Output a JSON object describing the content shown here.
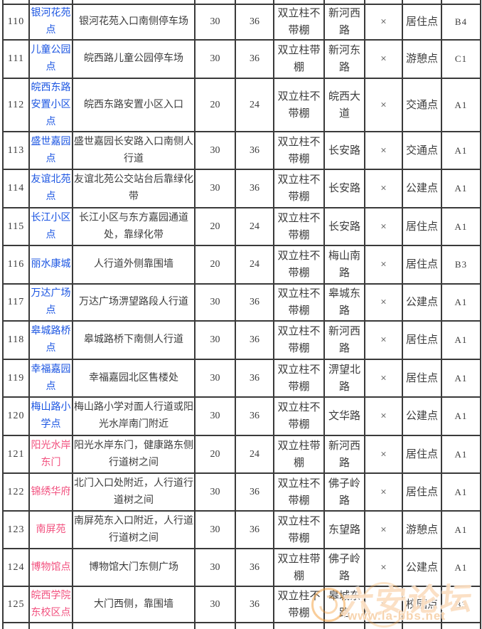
{
  "colors": {
    "link_blue": "#1b55e2",
    "link_pink": "#f2517f",
    "border": "#3a3a3a",
    "text": "#3c3c3c",
    "watermark_orange": "#f49c36"
  },
  "table": {
    "rows": [
      {
        "id": "110",
        "name": "银河花苑\n点",
        "link": "blue",
        "desc": "银河花苑入口南侧停车场",
        "qty1": "30",
        "qty2": "36",
        "type": "双立柱不\n带棚",
        "road": "新河西\n路",
        "mark": "×",
        "category": "居住点",
        "code": "B4"
      },
      {
        "id": "111",
        "name": "儿童公园\n点",
        "link": "blue",
        "desc": "皖西路儿童公园停车场",
        "qty1": "30",
        "qty2": "36",
        "type": "双立柱带\n棚",
        "road": "新河东\n路",
        "mark": "×",
        "category": "游憩点",
        "code": "C1"
      },
      {
        "id": "112",
        "name": "皖西东路\n安置小区\n点",
        "link": "blue",
        "desc": "皖西东路安置小区入口",
        "qty1": "20",
        "qty2": "24",
        "type": "双立柱不\n带棚",
        "road": "皖西大\n道",
        "mark": "×",
        "category": "交通点",
        "code": "A1"
      },
      {
        "id": "113",
        "name": "盛世嘉园\n点",
        "link": "blue",
        "desc": "盛世嘉园长安路入口南侧人\n行道",
        "qty1": "30",
        "qty2": "36",
        "type": "双立柱不\n带棚",
        "road": "长安路",
        "mark": "×",
        "category": "交通点",
        "code": "A1"
      },
      {
        "id": "114",
        "name": "友谊北苑\n点",
        "link": "blue",
        "desc": "友谊北苑公交站台后靠绿化\n带",
        "qty1": "30",
        "qty2": "36",
        "type": "双立柱不\n带棚",
        "road": "长安路",
        "mark": "×",
        "category": "公建点",
        "code": "A1"
      },
      {
        "id": "115",
        "name": "长江小区\n点",
        "link": "blue",
        "desc": "长江小区与东方嘉园通道\n处，靠绿化带",
        "qty1": "20",
        "qty2": "24",
        "type": "双立柱不\n带棚",
        "road": "长安路",
        "mark": "×",
        "category": "居住点",
        "code": "A1"
      },
      {
        "id": "116",
        "name": "丽水康城",
        "link": "blue",
        "desc": "人行道外侧靠围墙",
        "qty1": "20",
        "qty2": "24",
        "type": "双立柱不\n带棚",
        "road": "梅山南\n路",
        "mark": "×",
        "category": "居住点",
        "code": "B3"
      },
      {
        "id": "117",
        "name": "万达广场\n点",
        "link": "blue",
        "desc": "万达广场淠望路段人行道",
        "qty1": "30",
        "qty2": "36",
        "type": "双立柱不\n带棚",
        "road": "皋城东\n路",
        "mark": "×",
        "category": "公建点",
        "code": "A1"
      },
      {
        "id": "118",
        "name": "皋城路桥\n点",
        "link": "blue",
        "desc": "皋城路桥下南侧人行道",
        "qty1": "30",
        "qty2": "36",
        "type": "双立柱不\n带棚",
        "road": "新河西\n路",
        "mark": "×",
        "category": "居住点",
        "code": "A1"
      },
      {
        "id": "119",
        "name": "幸福嘉园\n点",
        "link": "blue",
        "desc": "幸福嘉园北区售楼处",
        "qty1": "30",
        "qty2": "36",
        "type": "双立柱不\n带棚",
        "road": "淠望北\n路",
        "mark": "×",
        "category": "居住点",
        "code": "A1"
      },
      {
        "id": "120",
        "name": "梅山路小\n学点",
        "link": "blue",
        "desc": "梅山路小学对面人行道或阳\n光水岸南门附近",
        "qty1": "30",
        "qty2": "36",
        "type": "双立柱不\n带棚",
        "road": "文华路",
        "mark": "×",
        "category": "公建点",
        "code": "A1"
      },
      {
        "id": "121",
        "name": "阳光水岸\n东门",
        "link": "pink",
        "desc": "阳光水岸东门，健康路东侧\n行道树之间",
        "qty1": "20",
        "qty2": "24",
        "type": "双立柱带\n棚",
        "road": "新河西\n路",
        "mark": "×",
        "category": "居住点",
        "code": "A1"
      },
      {
        "id": "122",
        "name": "锦绣华府",
        "link": "pink",
        "desc": "北门入口处附近，人行道行\n道树之间",
        "qty1": "30",
        "qty2": "36",
        "type": "双立柱不\n带棚",
        "road": "佛子岭\n路",
        "mark": "×",
        "category": "居住点",
        "code": "A1"
      },
      {
        "id": "123",
        "name": "南屏苑",
        "link": "pink",
        "desc": "南屏苑东入口附近，人行道\n行道树之间",
        "qty1": "30",
        "qty2": "36",
        "type": "双立柱不\n带棚",
        "road": "东望路",
        "mark": "×",
        "category": "游憩点",
        "code": "A1"
      },
      {
        "id": "124",
        "name": "博物馆点",
        "link": "pink",
        "desc": "博物馆大门东侧广场",
        "qty1": "30",
        "qty2": "36",
        "type": "双立柱带\n棚",
        "road": "佛子岭\n路",
        "mark": "×",
        "category": "公建点",
        "code": "A1"
      },
      {
        "id": "125",
        "name": "皖西学院\n东校区点",
        "link": "pink",
        "desc": "大门西侧，靠围墙",
        "qty1": "30",
        "qty2": "36",
        "type": "双立柱不\n带棚",
        "road": "皋城东\n路",
        "mark": "×",
        "category": "校园点",
        "code": "B3"
      }
    ]
  },
  "watermark": {
    "title": "六安论坛",
    "url": "www.la-bbs.net"
  }
}
